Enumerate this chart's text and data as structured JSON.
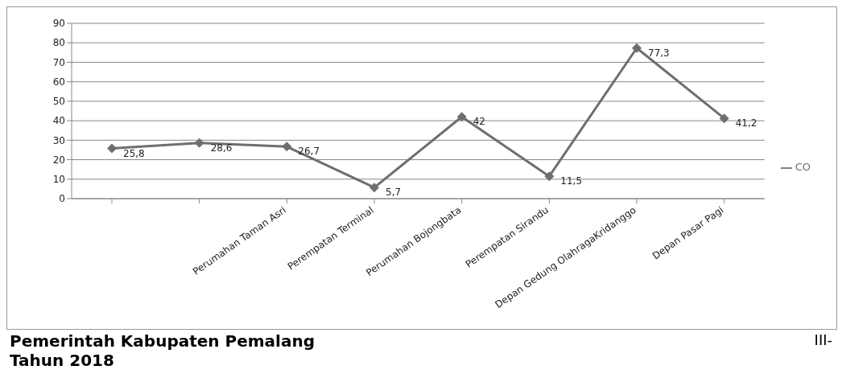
{
  "chart_data": {
    "type": "line",
    "categories": [
      null,
      null,
      "Perumahan Taman Asri",
      "Perempatan Terminal",
      "Perumahan Bojongbata",
      "Perempatan Sirandu",
      "Depan Gedung OlahragaKridanggo",
      "Depan Pasar Pagi"
    ],
    "series": [
      {
        "name": "CO",
        "color": "#6e6e6e",
        "values": [
          25.8,
          28.6,
          26.7,
          5.7,
          42,
          11.5,
          77.3,
          41.2
        ],
        "value_labels": [
          "25,8",
          "28,6",
          "26,7",
          "5,7",
          "42",
          "11,5",
          "77,3",
          "41,2"
        ]
      }
    ],
    "ylim": [
      0,
      90
    ],
    "yticks": [
      0,
      10,
      20,
      30,
      40,
      50,
      60,
      70,
      80,
      90
    ],
    "grid": "y",
    "legend": "right",
    "marker": "diamond",
    "line_style": "solid",
    "annotations": [
      "Pemerintah Kabupaten  Pemalang",
      "Tahun 2018",
      "III-"
    ]
  }
}
